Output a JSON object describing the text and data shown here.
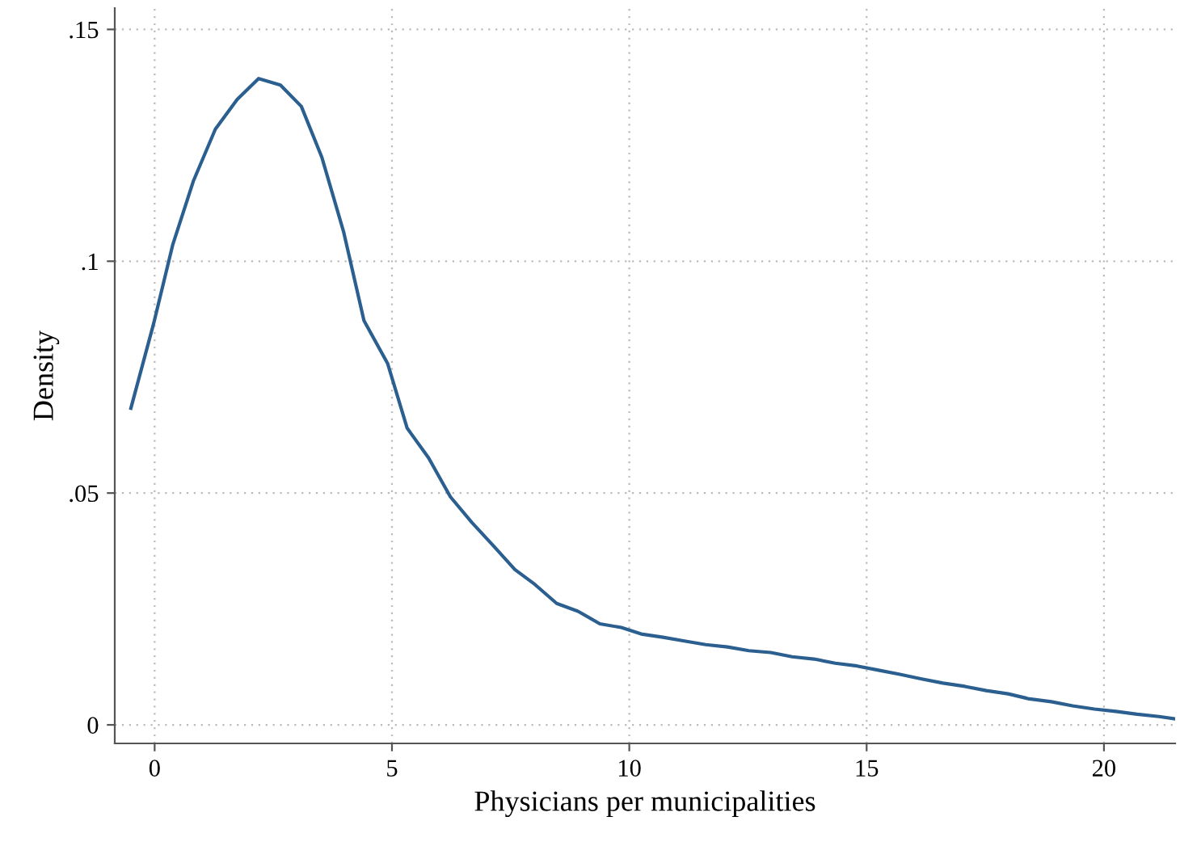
{
  "chart_data": {
    "type": "line",
    "xlabel": "Physicians per municipalities",
    "ylabel": "Density",
    "x": [
      -0.5,
      -0.02,
      0.38,
      0.82,
      1.28,
      1.74,
      2.19,
      2.65,
      3.09,
      3.52,
      3.98,
      4.41,
      4.91,
      5.32,
      5.77,
      6.23,
      6.68,
      7.14,
      7.59,
      8.01,
      8.47,
      8.92,
      9.38,
      9.83,
      10.25,
      10.71,
      11.16,
      11.61,
      12.07,
      12.52,
      12.98,
      13.43,
      13.89,
      14.34,
      14.8,
      15.25,
      15.7,
      16.16,
      16.61,
      17.07,
      17.52,
      17.98,
      18.43,
      18.89,
      19.34,
      19.8,
      20.25,
      20.7,
      21.16,
      21.5
    ],
    "series": [
      {
        "color": "#2a5f8f",
        "values": [
          0.0683,
          0.0866,
          0.1035,
          0.1174,
          0.1285,
          0.1349,
          0.1394,
          0.138,
          0.1334,
          0.1225,
          0.1064,
          0.0872,
          0.0779,
          0.064,
          0.0576,
          0.0492,
          0.0437,
          0.0386,
          0.0335,
          0.0303,
          0.0262,
          0.0245,
          0.0218,
          0.021,
          0.0196,
          0.0189,
          0.0181,
          0.0173,
          0.0168,
          0.016,
          0.0156,
          0.0147,
          0.0142,
          0.0133,
          0.0127,
          0.0118,
          0.0109,
          0.0099,
          0.009,
          0.0083,
          0.0074,
          0.0067,
          0.0056,
          0.005,
          0.0041,
          0.0034,
          0.0029,
          0.0023,
          0.0018,
          0.0013
        ]
      }
    ],
    "xlim": [
      -0.84,
      21.5
    ],
    "ylim": [
      -0.004,
      0.1546
    ],
    "xticks": [
      0,
      5,
      10,
      15,
      20
    ],
    "yticks": [
      0,
      {
        "value": 0.05,
        "label": ".05"
      },
      {
        "value": 0.1,
        "label": ".1"
      },
      {
        "value": 0.15,
        "label": ".15"
      }
    ],
    "grid": true,
    "line_style": "solid",
    "marker": "none"
  }
}
